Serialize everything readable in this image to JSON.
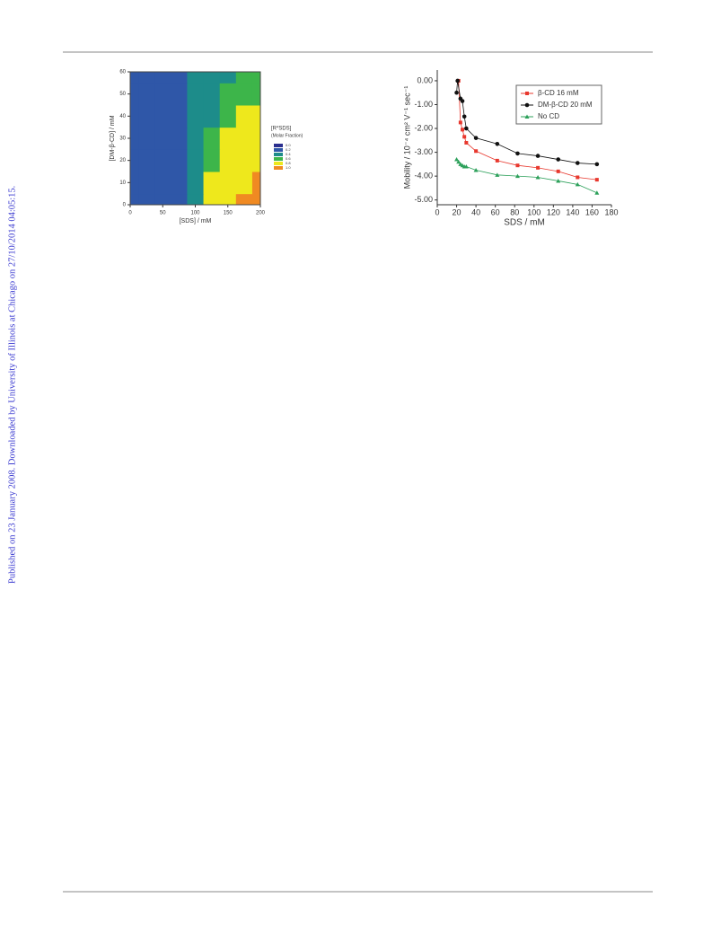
{
  "sidebar": "Published on 23 January 2008. Downloaded by University of Illinois at Chicago on 27/10/2014 04:05:15.",
  "chart_data": [
    {
      "type": "contour",
      "xlabel": "[SDS] / mM",
      "ylabel": "[DM-β-CD] / mM",
      "x": [
        0,
        25,
        50,
        75,
        100,
        125,
        150,
        175,
        200
      ],
      "y": [
        0,
        10,
        20,
        30,
        40,
        50,
        60
      ],
      "z": [
        [
          0.2,
          0.2,
          0.2,
          0.3,
          0.5,
          0.8,
          0.9,
          1.0,
          1.0
        ],
        [
          0.2,
          0.2,
          0.2,
          0.3,
          0.5,
          0.8,
          0.9,
          0.9,
          1.0
        ],
        [
          0.2,
          0.2,
          0.2,
          0.3,
          0.5,
          0.7,
          0.8,
          0.9,
          0.9
        ],
        [
          0.2,
          0.2,
          0.2,
          0.3,
          0.5,
          0.6,
          0.8,
          0.8,
          0.8
        ],
        [
          0.2,
          0.2,
          0.2,
          0.2,
          0.4,
          0.5,
          0.6,
          0.8,
          0.8
        ],
        [
          0.2,
          0.2,
          0.2,
          0.2,
          0.4,
          0.5,
          0.6,
          0.7,
          0.7
        ],
        [
          0.2,
          0.2,
          0.2,
          0.2,
          0.4,
          0.5,
          0.5,
          0.7,
          0.7
        ]
      ],
      "xlim": [
        0,
        200
      ],
      "ylim": [
        0,
        60
      ],
      "xticks": [
        0,
        50,
        100,
        150,
        200
      ],
      "yticks": [
        0,
        10,
        20,
        30,
        40,
        50,
        60
      ],
      "legend_title": "[R*SDS]",
      "legend_subtitle": "(Molar Fraction)",
      "levels": [
        {
          "value": 0,
          "label": "0.0",
          "color": "#2b2f8f"
        },
        {
          "value": 0.2,
          "label": "0.2",
          "color": "#2f57a8"
        },
        {
          "value": 0.4,
          "label": "0.4",
          "color": "#1d8c8a"
        },
        {
          "value": 0.6,
          "label": "0.6",
          "color": "#3db54a"
        },
        {
          "value": 0.8,
          "label": "0.8",
          "color": "#eee81c"
        },
        {
          "value": 1,
          "label": "1.0",
          "color": "#f08a22"
        }
      ]
    },
    {
      "type": "line",
      "xlabel": "SDS / mM",
      "ylabel": "Mobility / 10⁻⁴ cm² V⁻¹ sec⁻¹",
      "xlim": [
        0,
        180
      ],
      "ylim": [
        -5.2,
        0.45
      ],
      "xticks": [
        0,
        20,
        40,
        60,
        80,
        100,
        120,
        140,
        160,
        180
      ],
      "yticks": [
        {
          "value": 0,
          "label": "0.00"
        },
        {
          "value": -1,
          "label": "-1.00"
        },
        {
          "value": -2,
          "label": "-2.00"
        },
        {
          "value": -3,
          "label": "-3.00"
        },
        {
          "value": -4,
          "label": "-4.00"
        },
        {
          "value": -5,
          "label": "-5.00"
        }
      ],
      "legend": "upper right",
      "series": [
        {
          "name": "β-CD 16 mM",
          "color": "#e8382e",
          "marker": "square",
          "x": [
            22,
            24,
            26,
            28,
            30,
            40,
            62,
            83,
            104,
            125,
            145,
            165
          ],
          "values": [
            0,
            -1.75,
            -2.05,
            -2.35,
            -2.6,
            -2.95,
            -3.35,
            -3.55,
            -3.65,
            -3.8,
            -4.05,
            -4.15
          ]
        },
        {
          "name": "DM-β-CD 20 mM",
          "color": "#111111",
          "marker": "circle",
          "x": [
            20,
            21,
            24,
            26,
            28,
            30,
            40,
            62,
            83,
            104,
            125,
            145,
            165
          ],
          "values": [
            -0.5,
            0,
            -0.75,
            -0.85,
            -1.5,
            -2.0,
            -2.4,
            -2.65,
            -3.05,
            -3.15,
            -3.3,
            -3.45,
            -3.5
          ]
        },
        {
          "name": "No CD",
          "color": "#2ca05a",
          "marker": "triangle",
          "x": [
            20,
            22,
            24,
            26,
            28,
            30,
            40,
            62,
            83,
            104,
            125,
            145,
            165
          ],
          "values": [
            -3.3,
            -3.4,
            -3.5,
            -3.55,
            -3.6,
            -3.6,
            -3.75,
            -3.95,
            -4.0,
            -4.05,
            -4.2,
            -4.35,
            -4.7
          ]
        }
      ]
    }
  ]
}
